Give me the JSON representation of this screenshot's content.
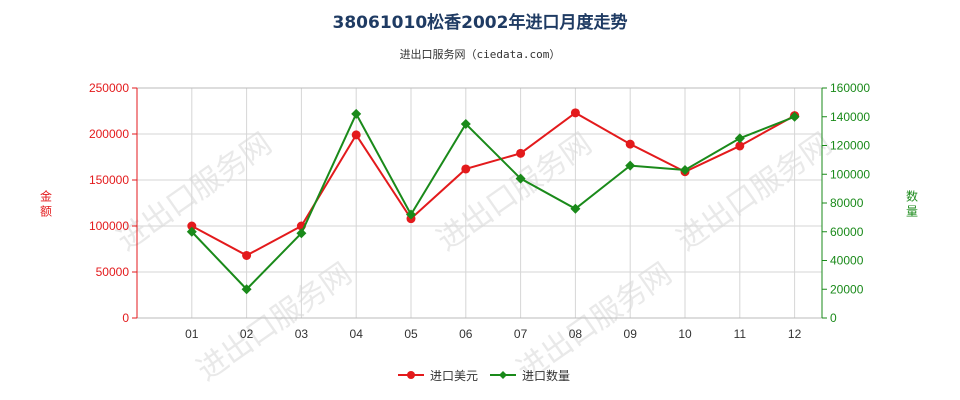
{
  "title": "38061010松香2002年进口月度走势",
  "subtitle": "进出口服务网（ciedata.com）",
  "watermark": "进出口服务网",
  "chart_data": {
    "type": "line",
    "categories": [
      "01",
      "02",
      "03",
      "04",
      "05",
      "06",
      "07",
      "08",
      "09",
      "10",
      "11",
      "12"
    ],
    "series": [
      {
        "name": "进口美元",
        "axis": "left",
        "color": "#e31a1c",
        "marker": "circle",
        "values": [
          100000,
          68000,
          100000,
          199000,
          108000,
          162000,
          179000,
          223000,
          189000,
          159000,
          187000,
          220000
        ]
      },
      {
        "name": "进口数量",
        "axis": "right",
        "color": "#1a8a1a",
        "marker": "diamond",
        "values": [
          60000,
          20000,
          59000,
          142000,
          72000,
          135000,
          97000,
          76000,
          106000,
          103000,
          125000,
          140000
        ]
      }
    ],
    "y_left": {
      "label": "金额",
      "min": 0,
      "max": 250000,
      "ticks": [
        0,
        50000,
        100000,
        150000,
        200000,
        250000
      ],
      "color": "#e31a1c"
    },
    "y_right": {
      "label": "数量",
      "min": 0,
      "max": 160000,
      "ticks": [
        0,
        20000,
        40000,
        60000,
        80000,
        100000,
        120000,
        140000,
        160000
      ],
      "color": "#1a8a1a"
    },
    "grid": true,
    "legend": "bottom-center"
  }
}
